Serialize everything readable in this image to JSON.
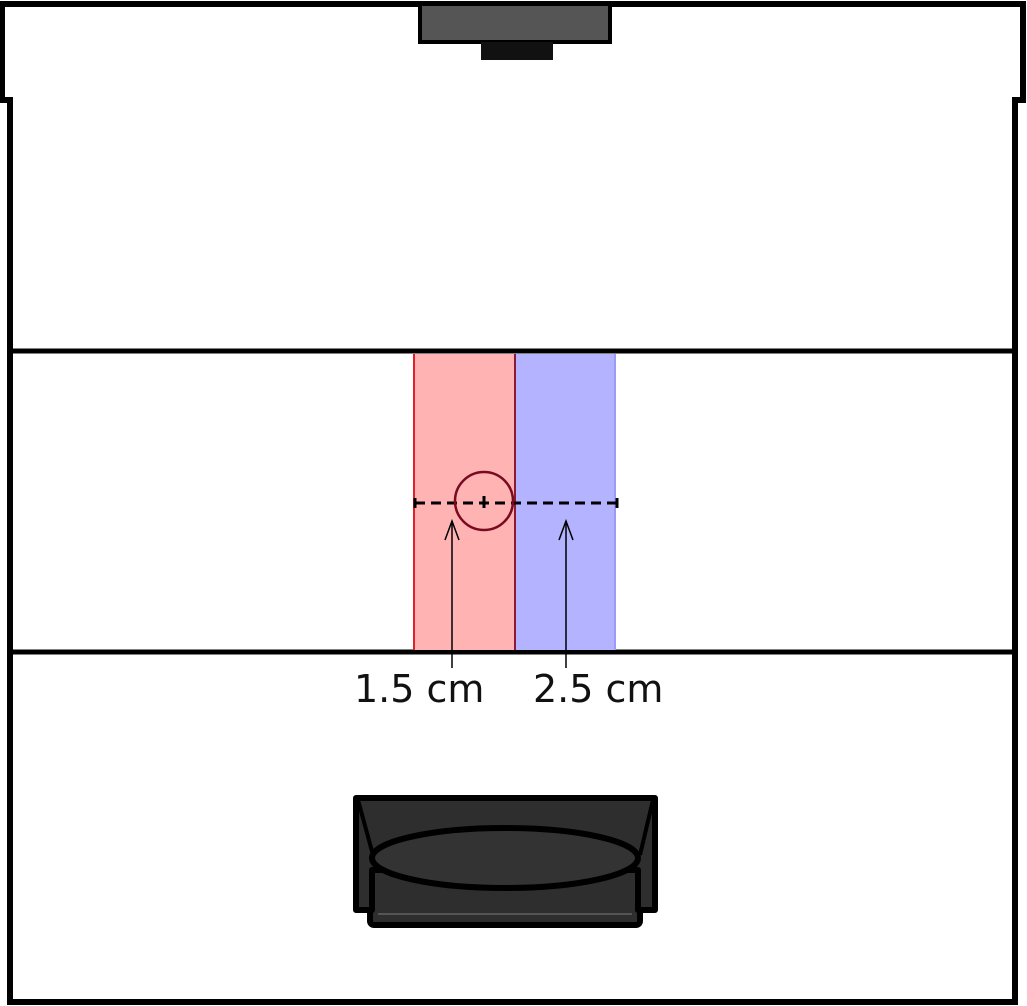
{
  "diagram": {
    "labels": {
      "left_width": "1.5 cm",
      "right_width": "2.5 cm"
    },
    "colors": {
      "outline": "#000000",
      "left_zone_fill": "#ffb3b3",
      "left_zone_edge": "#e0202a",
      "right_zone_fill": "#b3b3ff",
      "right_zone_edge": "#9a9aff",
      "divider": "#8b1a3a",
      "device_body": "#2e2e2e",
      "device_top": "#555555"
    },
    "icons": {
      "top_device": "overhead-light-icon",
      "bottom_device": "sensor-device-icon"
    }
  }
}
